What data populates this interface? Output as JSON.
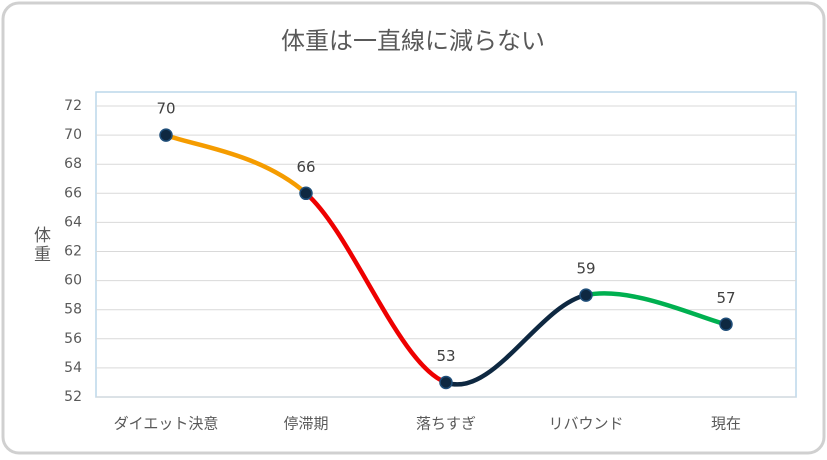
{
  "chart_data": {
    "type": "line",
    "title": "体重は一直線に減らない",
    "y_label": "体重",
    "categories": [
      "ダイエット決意",
      "停滞期",
      "落ちすぎ",
      "リバウンド",
      "現在"
    ],
    "series": [
      {
        "values": [
          70,
          66,
          53,
          59,
          57
        ],
        "color": "#0e2841"
      }
    ],
    "segment_colors": [
      "#f59c00",
      "#ee0000",
      "#0e2841",
      "#00b050"
    ],
    "smooth": true,
    "ylim": [
      52,
      72
    ],
    "yticks": [
      52,
      54,
      56,
      58,
      60,
      62,
      64,
      66,
      68,
      70,
      72
    ],
    "grid": true
  }
}
